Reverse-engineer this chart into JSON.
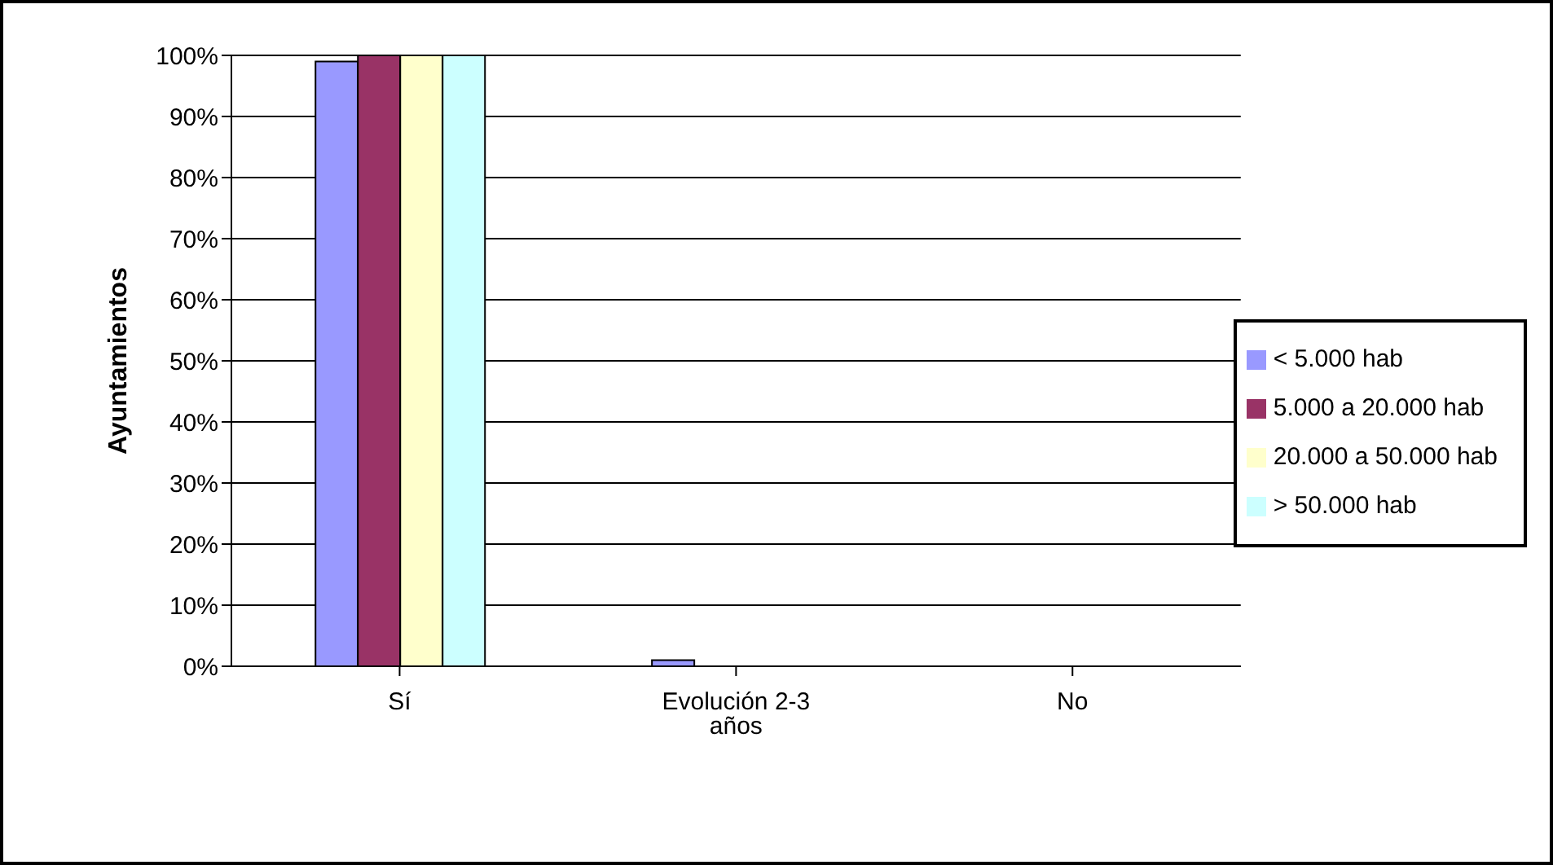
{
  "chart_data": {
    "type": "bar",
    "ylabel": "Ayuntamientos",
    "categories": [
      "Sí",
      "Evolución 2-3 años",
      "No"
    ],
    "series": [
      {
        "name": "< 5.000 hab",
        "color": "#9999ff",
        "values": [
          99,
          1,
          0
        ]
      },
      {
        "name": "5.000 a 20.000 hab",
        "color": "#993366",
        "values": [
          100,
          0,
          0
        ]
      },
      {
        "name": "20.000 a 50.000 hab",
        "color": "#ffffcc",
        "values": [
          100,
          0,
          0
        ]
      },
      {
        "name": "> 50.000 hab",
        "color": "#ccffff",
        "values": [
          100,
          0,
          0
        ]
      }
    ],
    "ylim": [
      0,
      100
    ],
    "yticks": [
      {
        "value": 0,
        "label": "0%"
      },
      {
        "value": 10,
        "label": "10%"
      },
      {
        "value": 20,
        "label": "20%"
      },
      {
        "value": 30,
        "label": "30%"
      },
      {
        "value": 40,
        "label": "40%"
      },
      {
        "value": 50,
        "label": "50%"
      },
      {
        "value": 60,
        "label": "60%"
      },
      {
        "value": 70,
        "label": "70%"
      },
      {
        "value": 80,
        "label": "80%"
      },
      {
        "value": 90,
        "label": "90%"
      },
      {
        "value": 100,
        "label": "100%"
      }
    ],
    "grid": "y",
    "legend": "right"
  }
}
